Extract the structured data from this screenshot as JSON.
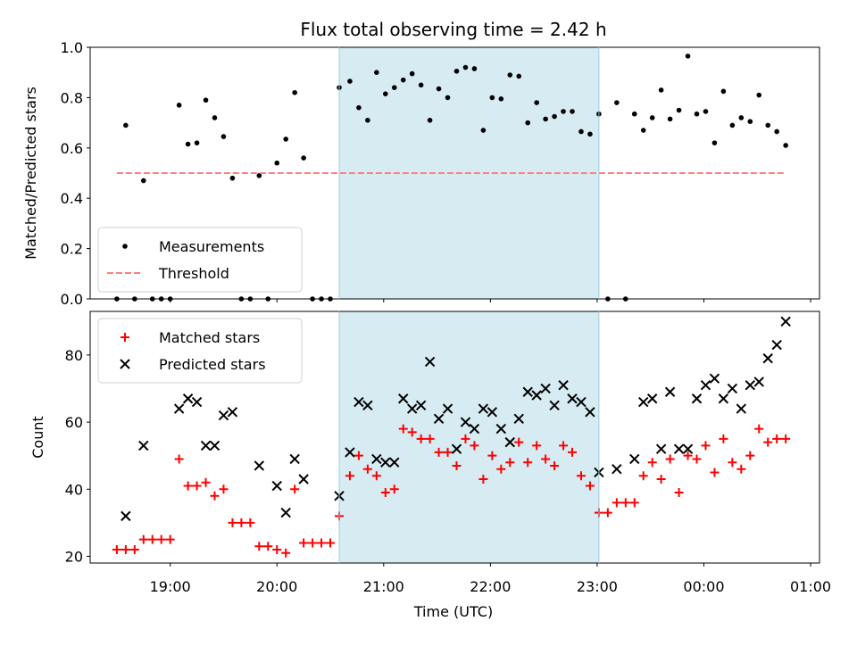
{
  "chart_data": [
    {
      "type": "scatter",
      "title": "Flux total observing time = 2.42 h",
      "xlabel": "",
      "ylabel": "Matched/Predicted stars",
      "ylim": [
        0,
        1.0
      ],
      "yticks": [
        0,
        0.2,
        0.4,
        0.6,
        0.8,
        1.0
      ],
      "ytick_labels": [
        "0.0",
        "0.2",
        "0.4",
        "0.6",
        "0.8",
        "1.0"
      ],
      "xlim": [
        "18:15",
        "01:05"
      ],
      "shaded_interval": {
        "start": "20:35",
        "end": "23:01",
        "color": "#add8e6"
      },
      "legend": "lower-left",
      "series": [
        {
          "name": "Measurements",
          "marker": "dot",
          "color": "#000000",
          "points": [
            [
              "18:30",
              0.0
            ],
            [
              "18:35",
              0.69
            ],
            [
              "18:40",
              0.0
            ],
            [
              "18:45",
              0.47
            ],
            [
              "18:50",
              0.0
            ],
            [
              "18:55",
              0.0
            ],
            [
              "19:00",
              0.0
            ],
            [
              "19:05",
              0.77
            ],
            [
              "19:10",
              0.615
            ],
            [
              "19:15",
              0.62
            ],
            [
              "19:20",
              0.79
            ],
            [
              "19:25",
              0.72
            ],
            [
              "19:30",
              0.645
            ],
            [
              "19:35",
              0.48
            ],
            [
              "19:40",
              0.0
            ],
            [
              "19:45",
              0.0
            ],
            [
              "19:50",
              0.49
            ],
            [
              "19:55",
              0.0
            ],
            [
              "20:00",
              0.54
            ],
            [
              "20:05",
              0.635
            ],
            [
              "20:10",
              0.82
            ],
            [
              "20:15",
              0.56
            ],
            [
              "20:20",
              0.0
            ],
            [
              "20:25",
              0.0
            ],
            [
              "20:30",
              0.0
            ],
            [
              "20:35",
              0.84
            ],
            [
              "20:41",
              0.865
            ],
            [
              "20:46",
              0.76
            ],
            [
              "20:51",
              0.71
            ],
            [
              "20:56",
              0.9
            ],
            [
              "21:01",
              0.815
            ],
            [
              "21:06",
              0.84
            ],
            [
              "21:11",
              0.87
            ],
            [
              "21:16",
              0.895
            ],
            [
              "21:21",
              0.85
            ],
            [
              "21:26",
              0.71
            ],
            [
              "21:31",
              0.835
            ],
            [
              "21:36",
              0.8
            ],
            [
              "21:41",
              0.905
            ],
            [
              "21:46",
              0.92
            ],
            [
              "21:51",
              0.915
            ],
            [
              "21:56",
              0.67
            ],
            [
              "22:01",
              0.8
            ],
            [
              "22:06",
              0.795
            ],
            [
              "22:11",
              0.89
            ],
            [
              "22:16",
              0.885
            ],
            [
              "22:21",
              0.7
            ],
            [
              "22:26",
              0.78
            ],
            [
              "22:31",
              0.715
            ],
            [
              "22:36",
              0.725
            ],
            [
              "22:41",
              0.745
            ],
            [
              "22:46",
              0.745
            ],
            [
              "22:51",
              0.665
            ],
            [
              "22:56",
              0.655
            ],
            [
              "23:01",
              0.735
            ],
            [
              "23:06",
              0.0
            ],
            [
              "23:11",
              0.78
            ],
            [
              "23:16",
              0.0
            ],
            [
              "23:21",
              0.735
            ],
            [
              "23:26",
              0.67
            ],
            [
              "23:31",
              0.72
            ],
            [
              "23:36",
              0.83
            ],
            [
              "23:41",
              0.715
            ],
            [
              "23:46",
              0.75
            ],
            [
              "23:51",
              0.965
            ],
            [
              "23:56",
              0.735
            ],
            [
              "00:01",
              0.745
            ],
            [
              "00:06",
              0.62
            ],
            [
              "00:11",
              0.825
            ],
            [
              "00:16",
              0.69
            ],
            [
              "00:21",
              0.72
            ],
            [
              "00:26",
              0.705
            ],
            [
              "00:31",
              0.81
            ],
            [
              "00:36",
              0.69
            ],
            [
              "00:41",
              0.665
            ],
            [
              "00:46",
              0.61
            ]
          ]
        },
        {
          "name": "Threshold",
          "marker": "dashed-line",
          "color": "#ff7f7f",
          "points": [
            [
              "18:30",
              0.5
            ],
            [
              "00:46",
              0.5
            ]
          ]
        }
      ]
    },
    {
      "type": "scatter",
      "title": "",
      "xlabel": "Time (UTC)",
      "ylabel": "Count",
      "ylim": [
        18,
        93
      ],
      "yticks": [
        20,
        40,
        60,
        80
      ],
      "ytick_labels": [
        "20",
        "40",
        "60",
        "80"
      ],
      "xlim": [
        "18:15",
        "01:05"
      ],
      "xticks": [
        "19:00",
        "20:00",
        "21:00",
        "22:00",
        "23:00",
        "00:00",
        "01:00"
      ],
      "shaded_interval": {
        "start": "20:35",
        "end": "23:01",
        "color": "#add8e6"
      },
      "legend": "top-left",
      "series": [
        {
          "name": "Matched stars",
          "marker": "plus",
          "color": "#ff0000",
          "points": [
            [
              "18:30",
              22
            ],
            [
              "18:35",
              22
            ],
            [
              "18:40",
              22
            ],
            [
              "18:45",
              25
            ],
            [
              "18:50",
              25
            ],
            [
              "18:55",
              25
            ],
            [
              "19:00",
              25
            ],
            [
              "19:05",
              49
            ],
            [
              "19:10",
              41
            ],
            [
              "19:15",
              41
            ],
            [
              "19:20",
              42
            ],
            [
              "19:25",
              38
            ],
            [
              "19:30",
              40
            ],
            [
              "19:35",
              30
            ],
            [
              "19:40",
              30
            ],
            [
              "19:45",
              30
            ],
            [
              "19:50",
              23
            ],
            [
              "19:55",
              23
            ],
            [
              "20:00",
              22
            ],
            [
              "20:05",
              21
            ],
            [
              "20:10",
              40
            ],
            [
              "20:15",
              24
            ],
            [
              "20:20",
              24
            ],
            [
              "20:25",
              24
            ],
            [
              "20:30",
              24
            ],
            [
              "20:35",
              32
            ],
            [
              "20:41",
              44
            ],
            [
              "20:46",
              50
            ],
            [
              "20:51",
              46
            ],
            [
              "20:56",
              44
            ],
            [
              "21:01",
              39
            ],
            [
              "21:06",
              40
            ],
            [
              "21:11",
              58
            ],
            [
              "21:16",
              57
            ],
            [
              "21:21",
              55
            ],
            [
              "21:26",
              55
            ],
            [
              "21:31",
              51
            ],
            [
              "21:36",
              51
            ],
            [
              "21:41",
              47
            ],
            [
              "21:46",
              55
            ],
            [
              "21:51",
              53
            ],
            [
              "21:56",
              43
            ],
            [
              "22:01",
              50
            ],
            [
              "22:06",
              46
            ],
            [
              "22:11",
              48
            ],
            [
              "22:16",
              54
            ],
            [
              "22:21",
              48
            ],
            [
              "22:26",
              53
            ],
            [
              "22:31",
              49
            ],
            [
              "22:36",
              47
            ],
            [
              "22:41",
              53
            ],
            [
              "22:46",
              51
            ],
            [
              "22:51",
              44
            ],
            [
              "22:56",
              41
            ],
            [
              "23:01",
              33
            ],
            [
              "23:06",
              33
            ],
            [
              "23:11",
              36
            ],
            [
              "23:16",
              36
            ],
            [
              "23:21",
              36
            ],
            [
              "23:26",
              44
            ],
            [
              "23:31",
              48
            ],
            [
              "23:36",
              43
            ],
            [
              "23:41",
              49
            ],
            [
              "23:46",
              39
            ],
            [
              "23:51",
              50
            ],
            [
              "23:56",
              49
            ],
            [
              "00:01",
              53
            ],
            [
              "00:06",
              45
            ],
            [
              "00:11",
              55
            ],
            [
              "00:16",
              48
            ],
            [
              "00:21",
              46
            ],
            [
              "00:26",
              50
            ],
            [
              "00:31",
              58
            ],
            [
              "00:36",
              54
            ],
            [
              "00:41",
              55
            ],
            [
              "00:46",
              55
            ]
          ]
        },
        {
          "name": "Predicted stars",
          "marker": "x",
          "color": "#000000",
          "points": [
            [
              "18:35",
              32
            ],
            [
              "18:45",
              53
            ],
            [
              "19:05",
              64
            ],
            [
              "19:10",
              67
            ],
            [
              "19:15",
              66
            ],
            [
              "19:20",
              53
            ],
            [
              "19:25",
              53
            ],
            [
              "19:30",
              62
            ],
            [
              "19:35",
              63
            ],
            [
              "19:50",
              47
            ],
            [
              "20:00",
              41
            ],
            [
              "20:05",
              33
            ],
            [
              "20:10",
              49
            ],
            [
              "20:15",
              43
            ],
            [
              "20:35",
              38
            ],
            [
              "20:41",
              51
            ],
            [
              "20:46",
              66
            ],
            [
              "20:51",
              65
            ],
            [
              "20:56",
              49
            ],
            [
              "21:01",
              48
            ],
            [
              "21:06",
              48
            ],
            [
              "21:11",
              67
            ],
            [
              "21:16",
              64
            ],
            [
              "21:21",
              65
            ],
            [
              "21:26",
              78
            ],
            [
              "21:31",
              61
            ],
            [
              "21:36",
              64
            ],
            [
              "21:41",
              52
            ],
            [
              "21:46",
              60
            ],
            [
              "21:51",
              58
            ],
            [
              "21:56",
              64
            ],
            [
              "22:01",
              63
            ],
            [
              "22:06",
              58
            ],
            [
              "22:11",
              54
            ],
            [
              "22:16",
              61
            ],
            [
              "22:21",
              69
            ],
            [
              "22:26",
              68
            ],
            [
              "22:31",
              70
            ],
            [
              "22:36",
              65
            ],
            [
              "22:41",
              71
            ],
            [
              "22:46",
              67
            ],
            [
              "22:51",
              66
            ],
            [
              "22:56",
              63
            ],
            [
              "23:01",
              45
            ],
            [
              "23:11",
              46
            ],
            [
              "23:21",
              49
            ],
            [
              "23:26",
              66
            ],
            [
              "23:31",
              67
            ],
            [
              "23:36",
              52
            ],
            [
              "23:41",
              69
            ],
            [
              "23:46",
              52
            ],
            [
              "23:51",
              52
            ],
            [
              "23:56",
              67
            ],
            [
              "00:01",
              71
            ],
            [
              "00:06",
              73
            ],
            [
              "00:11",
              67
            ],
            [
              "00:16",
              70
            ],
            [
              "00:21",
              64
            ],
            [
              "00:26",
              71
            ],
            [
              "00:31",
              72
            ],
            [
              "00:36",
              79
            ],
            [
              "00:41",
              83
            ],
            [
              "00:46",
              90
            ]
          ]
        }
      ]
    }
  ]
}
